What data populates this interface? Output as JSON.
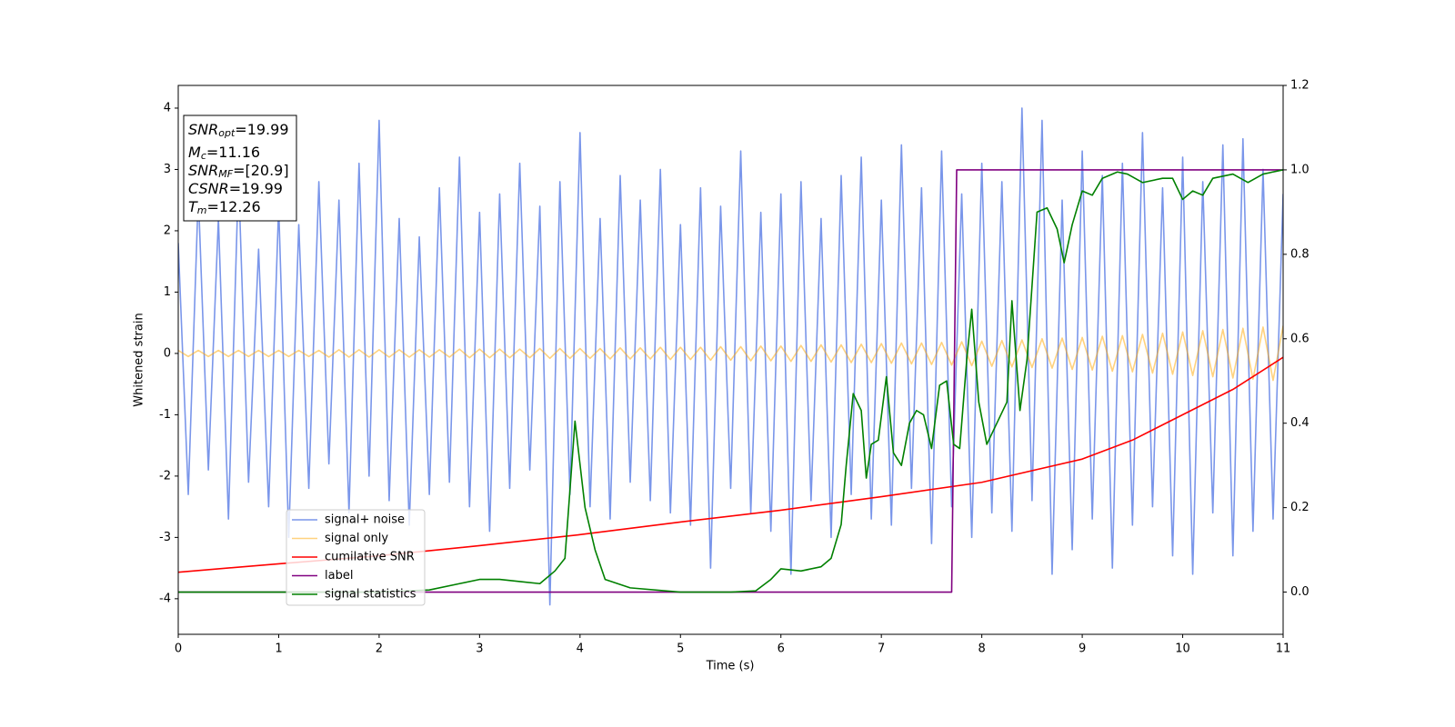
{
  "chart_data": {
    "type": "line",
    "xlabel": "Time (s)",
    "ylabel": "Whitened strain",
    "xlim": [
      0,
      11
    ],
    "ylim": [
      -4.58,
      4.37
    ],
    "y2lim": [
      -0.1,
      1.2
    ],
    "xticks": [
      0,
      1,
      2,
      3,
      4,
      5,
      6,
      7,
      8,
      9,
      10,
      11
    ],
    "yticks": [
      -4,
      -3,
      -2,
      -1,
      0,
      1,
      2,
      3,
      4
    ],
    "y2ticks": [
      {
        "value": 0,
        "label": "0.0"
      },
      {
        "value": 0.2,
        "label": "0.2"
      },
      {
        "value": 0.4,
        "label": "0.4"
      },
      {
        "value": 0.6,
        "label": "0.6"
      },
      {
        "value": 0.8,
        "label": "0.8"
      },
      {
        "value": 1,
        "label": "1.0"
      },
      {
        "value": 1.2,
        "label": "1.2"
      }
    ],
    "legend": "lower left",
    "annotation_lines": [
      {
        "symbol": "SNR",
        "sub": "opt",
        "text": "=19.99"
      },
      {
        "symbol": "M",
        "sub": "c",
        "text": "=11.16"
      },
      {
        "symbol": "SNR",
        "sub": "MF",
        "text": "=[20.9]"
      },
      {
        "symbol": "CSNR",
        "text": "=19.99"
      },
      {
        "symbol": "T",
        "sub": "m",
        "text": "=12.26"
      }
    ],
    "x": [
      0,
      0.1,
      0.2,
      0.3,
      0.4,
      0.5,
      0.6,
      0.7,
      0.8,
      0.9,
      1,
      1.1,
      1.2,
      1.3,
      1.4,
      1.5,
      1.6,
      1.7,
      1.8,
      1.9,
      2,
      2.1,
      2.2,
      2.3,
      2.4,
      2.5,
      2.6,
      2.7,
      2.8,
      2.9,
      3,
      3.1,
      3.2,
      3.3,
      3.4,
      3.5,
      3.6,
      3.7,
      3.8,
      3.9,
      4,
      4.1,
      4.2,
      4.3,
      4.4,
      4.5,
      4.6,
      4.7,
      4.8,
      4.9,
      5,
      5.1,
      5.2,
      5.3,
      5.4,
      5.5,
      5.6,
      5.7,
      5.8,
      5.9,
      6,
      6.1,
      6.2,
      6.3,
      6.4,
      6.5,
      6.6,
      6.7,
      6.8,
      6.9,
      7,
      7.1,
      7.2,
      7.3,
      7.4,
      7.5,
      7.6,
      7.7,
      7.8,
      7.9,
      8,
      8.1,
      8.2,
      8.3,
      8.4,
      8.5,
      8.6,
      8.7,
      8.8,
      8.9,
      9,
      9.1,
      9.2,
      9.3,
      9.4,
      9.5,
      9.6,
      9.7,
      9.8,
      9.9,
      10,
      10.1,
      10.2,
      10.3,
      10.4,
      10.5,
      10.6,
      10.7,
      10.8,
      10.9,
      11
    ],
    "series": [
      {
        "name": "signal+ noise",
        "color": "#4169e1",
        "alpha": 0.7,
        "values": [
          1.8,
          -2.3,
          2.6,
          -1.9,
          2.2,
          -2.7,
          2.9,
          -2.1,
          1.7,
          -2.5,
          2.4,
          -3.0,
          2.1,
          -2.2,
          2.8,
          -1.8,
          2.5,
          -2.6,
          3.1,
          -2.0,
          3.8,
          -2.4,
          2.2,
          -2.8,
          1.9,
          -2.3,
          2.7,
          -2.1,
          3.2,
          -2.5,
          2.3,
          -2.9,
          2.6,
          -2.2,
          3.1,
          -1.9,
          2.4,
          -4.1,
          2.8,
          -2.3,
          3.6,
          -2.5,
          2.2,
          -2.7,
          2.9,
          -2.1,
          2.5,
          -2.4,
          3.0,
          -2.6,
          2.1,
          -2.8,
          2.7,
          -3.5,
          2.4,
          -2.2,
          3.3,
          -2.6,
          2.3,
          -2.9,
          2.6,
          -3.6,
          2.8,
          -2.4,
          2.2,
          -3.0,
          2.9,
          -2.3,
          3.2,
          -2.7,
          2.5,
          -2.8,
          3.4,
          -2.2,
          2.7,
          -3.1,
          3.3,
          -2.5,
          2.6,
          -3.0,
          3.1,
          -2.6,
          2.8,
          -2.9,
          4.0,
          -2.4,
          3.8,
          -3.6,
          2.5,
          -3.2,
          3.3,
          -2.7,
          2.9,
          -3.5,
          3.1,
          -2.8,
          3.6,
          -2.5,
          2.7,
          -3.3,
          3.2,
          -3.6,
          2.8,
          -2.6,
          3.4,
          -3.3,
          3.5,
          -2.9,
          3.0,
          -2.7,
          2.6
        ]
      },
      {
        "name": "signal only",
        "color": "#ffa500",
        "alpha": 0.5,
        "values": [
          0.05,
          -0.05,
          0.05,
          -0.05,
          0.05,
          -0.05,
          0.05,
          -0.05,
          0.05,
          -0.05,
          0.05,
          -0.05,
          0.05,
          -0.05,
          0.05,
          -0.06,
          0.06,
          -0.06,
          0.06,
          -0.06,
          0.06,
          -0.06,
          0.06,
          -0.06,
          0.06,
          -0.06,
          0.06,
          -0.06,
          0.07,
          -0.07,
          0.07,
          -0.07,
          0.07,
          -0.07,
          0.07,
          -0.07,
          0.08,
          -0.08,
          0.08,
          -0.08,
          0.08,
          -0.08,
          0.08,
          -0.09,
          0.09,
          -0.09,
          0.09,
          -0.09,
          0.1,
          -0.1,
          0.1,
          -0.1,
          0.1,
          -0.11,
          0.11,
          -0.11,
          0.11,
          -0.12,
          0.12,
          -0.12,
          0.12,
          -0.13,
          0.13,
          -0.13,
          0.14,
          -0.14,
          0.14,
          -0.15,
          0.15,
          -0.15,
          0.16,
          -0.16,
          0.17,
          -0.17,
          0.17,
          -0.18,
          0.18,
          -0.19,
          0.19,
          -0.2,
          0.2,
          -0.21,
          0.21,
          -0.22,
          0.22,
          -0.23,
          0.24,
          -0.24,
          0.25,
          -0.26,
          0.26,
          -0.27,
          0.28,
          -0.29,
          0.29,
          -0.3,
          0.31,
          -0.32,
          0.33,
          -0.34,
          0.35,
          -0.36,
          0.37,
          -0.38,
          0.39,
          -0.4,
          0.41,
          -0.42,
          0.43,
          -0.44,
          0.45
        ]
      },
      {
        "name": "cumilative SNR",
        "color": "#ff0000",
        "axis": "y2",
        "x": [
          0,
          1,
          2,
          3,
          4,
          5,
          6,
          7,
          8,
          9,
          9.5,
          10,
          10.5,
          11
        ],
        "values": [
          0.047,
          0.067,
          0.086,
          0.11,
          0.136,
          0.166,
          0.194,
          0.226,
          0.26,
          0.315,
          0.36,
          0.42,
          0.48,
          0.556
        ]
      },
      {
        "name": "label",
        "color": "#800080",
        "axis": "y2",
        "x": [
          0,
          7.7,
          7.75,
          11
        ],
        "values": [
          0,
          0,
          1,
          1
        ]
      },
      {
        "name": "signal statistics",
        "color": "#008000",
        "axis": "y2",
        "x": [
          0,
          1,
          2,
          2.5,
          2.8,
          3,
          3.2,
          3.4,
          3.6,
          3.75,
          3.85,
          3.95,
          4.05,
          4.15,
          4.25,
          4.5,
          5,
          5.5,
          5.75,
          5.9,
          6,
          6.2,
          6.4,
          6.5,
          6.6,
          6.65,
          6.72,
          6.8,
          6.85,
          6.9,
          6.97,
          7.05,
          7.12,
          7.2,
          7.28,
          7.35,
          7.42,
          7.5,
          7.58,
          7.65,
          7.72,
          7.78,
          7.85,
          7.9,
          7.97,
          8.05,
          8.15,
          8.25,
          8.3,
          8.38,
          8.45,
          8.55,
          8.65,
          8.75,
          8.82,
          8.9,
          9,
          9.1,
          9.2,
          9.35,
          9.45,
          9.6,
          9.8,
          9.9,
          10,
          10.1,
          10.2,
          10.3,
          10.5,
          10.65,
          10.8,
          11
        ],
        "values": [
          0,
          0,
          0,
          0.005,
          0.02,
          0.03,
          0.03,
          0.025,
          0.02,
          0.05,
          0.08,
          0.405,
          0.2,
          0.1,
          0.03,
          0.01,
          0,
          0,
          0.003,
          0.03,
          0.055,
          0.05,
          0.06,
          0.08,
          0.16,
          0.3,
          0.47,
          0.43,
          0.27,
          0.35,
          0.36,
          0.51,
          0.33,
          0.3,
          0.4,
          0.43,
          0.42,
          0.34,
          0.49,
          0.5,
          0.35,
          0.34,
          0.55,
          0.67,
          0.45,
          0.35,
          0.4,
          0.45,
          0.69,
          0.43,
          0.55,
          0.9,
          0.91,
          0.86,
          0.78,
          0.87,
          0.95,
          0.94,
          0.98,
          0.995,
          0.99,
          0.97,
          0.98,
          0.98,
          0.93,
          0.95,
          0.94,
          0.98,
          0.99,
          0.97,
          0.99,
          1
        ]
      }
    ]
  }
}
